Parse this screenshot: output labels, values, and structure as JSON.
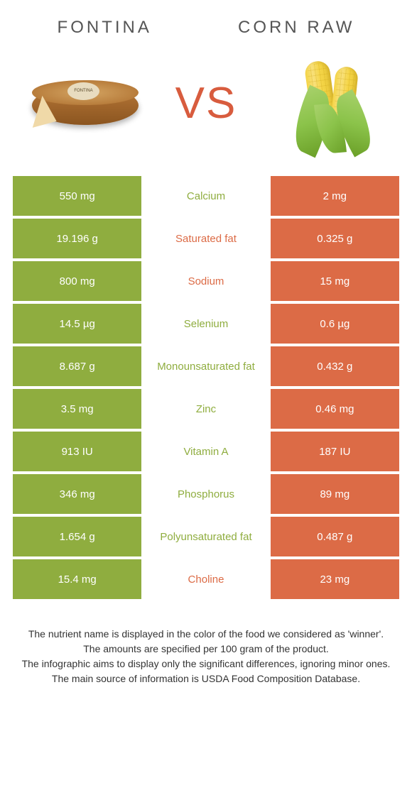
{
  "colors": {
    "left": "#8fad3f",
    "right": "#dc6b46",
    "leftText": "#8fad3f",
    "rightText": "#dc6b46"
  },
  "header": {
    "left": "Fontina",
    "right": "Corn raw",
    "vs": "VS"
  },
  "rows": [
    {
      "left": "550 mg",
      "label": "Calcium",
      "right": "2 mg",
      "winner": "left"
    },
    {
      "left": "19.196 g",
      "label": "Saturated fat",
      "right": "0.325 g",
      "winner": "right"
    },
    {
      "left": "800 mg",
      "label": "Sodium",
      "right": "15 mg",
      "winner": "right"
    },
    {
      "left": "14.5 µg",
      "label": "Selenium",
      "right": "0.6 µg",
      "winner": "left"
    },
    {
      "left": "8.687 g",
      "label": "Monounsaturated fat",
      "right": "0.432 g",
      "winner": "left"
    },
    {
      "left": "3.5 mg",
      "label": "Zinc",
      "right": "0.46 mg",
      "winner": "left"
    },
    {
      "left": "913 IU",
      "label": "Vitamin A",
      "right": "187 IU",
      "winner": "left"
    },
    {
      "left": "346 mg",
      "label": "Phosphorus",
      "right": "89 mg",
      "winner": "left"
    },
    {
      "left": "1.654 g",
      "label": "Polyunsaturated fat",
      "right": "0.487 g",
      "winner": "left"
    },
    {
      "left": "15.4 mg",
      "label": "Choline",
      "right": "23 mg",
      "winner": "right"
    }
  ],
  "footer": {
    "line1": "The nutrient name is displayed in the color of the food we considered as 'winner'.",
    "line2": "The amounts are specified per 100 gram of the product.",
    "line3": "The infographic aims to display only the significant differences, ignoring minor ones.",
    "line4": "The main source of information is USDA Food Composition Database."
  }
}
